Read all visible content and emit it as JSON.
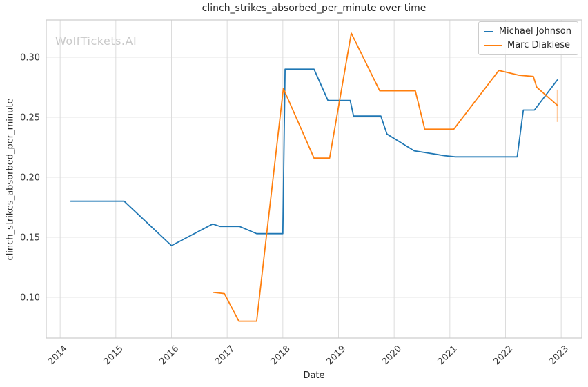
{
  "watermark": "WolfTickets.AI",
  "chart_data": {
    "type": "line",
    "title": "clinch_strikes_absorbed_per_minute over time",
    "xlabel": "Date",
    "ylabel": "clinch_strikes_absorbed_per_minute",
    "xlim": [
      2013.75,
      2023.37
    ],
    "ylim": [
      0.066,
      0.331
    ],
    "xtick_values": [
      2014,
      2015,
      2016,
      2017,
      2018,
      2019,
      2020,
      2021,
      2022,
      2023
    ],
    "xtick_labels": [
      "2014",
      "2015",
      "2016",
      "2017",
      "2018",
      "2019",
      "2020",
      "2021",
      "2022",
      "2023"
    ],
    "ytick_values": [
      0.1,
      0.15,
      0.2,
      0.25,
      0.3
    ],
    "ytick_labels": [
      "0.10",
      "0.15",
      "0.20",
      "0.25",
      "0.30"
    ],
    "grid": true,
    "grid_color": "#dcdcdc",
    "spine_color": "#cccccc",
    "legend_position": "upper right",
    "series": [
      {
        "name": "Michael Johnson",
        "color": "#1f77b4",
        "points": [
          [
            2014.19,
            0.18
          ],
          [
            2015.15,
            0.18
          ],
          [
            2016.0,
            0.143
          ],
          [
            2016.74,
            0.161
          ],
          [
            2016.87,
            0.159
          ],
          [
            2017.22,
            0.159
          ],
          [
            2017.53,
            0.153
          ],
          [
            2018.0,
            0.153
          ],
          [
            2018.04,
            0.29
          ],
          [
            2018.56,
            0.29
          ],
          [
            2018.81,
            0.264
          ],
          [
            2019.21,
            0.264
          ],
          [
            2019.27,
            0.251
          ],
          [
            2019.76,
            0.251
          ],
          [
            2019.87,
            0.236
          ],
          [
            2020.36,
            0.222
          ],
          [
            2020.9,
            0.218
          ],
          [
            2021.1,
            0.217
          ],
          [
            2022.21,
            0.217
          ],
          [
            2022.32,
            0.256
          ],
          [
            2022.52,
            0.256
          ],
          [
            2022.93,
            0.281
          ]
        ]
      },
      {
        "name": "Marc Diakiese",
        "color": "#ff7f0e",
        "points": [
          [
            2016.76,
            0.104
          ],
          [
            2016.95,
            0.103
          ],
          [
            2017.21,
            0.08
          ],
          [
            2017.53,
            0.08
          ],
          [
            2018.01,
            0.274
          ],
          [
            2018.56,
            0.216
          ],
          [
            2018.84,
            0.216
          ],
          [
            2019.23,
            0.32
          ],
          [
            2019.74,
            0.272
          ],
          [
            2020.38,
            0.272
          ],
          [
            2020.55,
            0.24
          ],
          [
            2021.07,
            0.24
          ],
          [
            2021.88,
            0.289
          ],
          [
            2022.24,
            0.285
          ],
          [
            2022.5,
            0.284
          ],
          [
            2022.56,
            0.275
          ],
          [
            2022.93,
            0.26
          ]
        ],
        "error_bar": {
          "x": 2022.93,
          "y_low": 0.246,
          "y_high": 0.273
        }
      }
    ]
  }
}
